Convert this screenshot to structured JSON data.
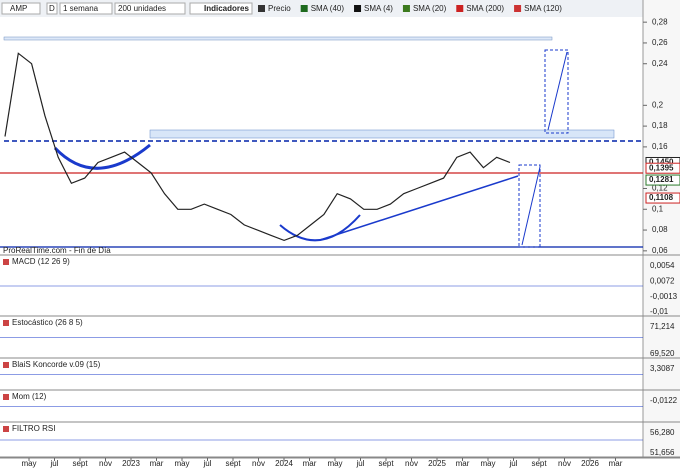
{
  "toolbar": {
    "symbol": "AMP",
    "mode": "D",
    "period": "1 semana",
    "units": "200 unidades",
    "indicators": "Indicadores"
  },
  "legend": [
    "Precio",
    "SMA (40)",
    "SMA (4)",
    "SMA (20)",
    "SMA (200)",
    "SMA (120)"
  ],
  "legend_colors": [
    "#333333",
    "#1e6a1e",
    "#111111",
    "#3c7a1e",
    "#cc2222",
    "#cc3333"
  ],
  "source": "ProRealTime.com - Fin de Día",
  "price_panel": {
    "ylim": [
      0.056,
      0.284
    ],
    "yticks": [
      {
        "value": 0.28,
        "label": "0,28"
      },
      {
        "value": 0.26,
        "label": "0,26"
      },
      {
        "value": 0.24,
        "label": "0,24"
      },
      {
        "value": 0.2,
        "label": "0,2"
      },
      {
        "value": 0.18,
        "label": "0,18"
      },
      {
        "value": 0.16,
        "label": "0,16"
      },
      {
        "value": 0.12,
        "label": "0,12"
      },
      {
        "value": 0.1,
        "label": "0,1"
      },
      {
        "value": 0.08,
        "label": "0,08"
      },
      {
        "value": 0.06,
        "label": "0,06"
      }
    ],
    "price_labels": [
      {
        "value": 0.145,
        "label": "0,1450",
        "color": "#222222"
      },
      {
        "value": 0.1395,
        "label": "0,1395",
        "color": "#cc2222"
      },
      {
        "value": 0.1281,
        "label": "0,1281",
        "color": "#2b7a2b"
      },
      {
        "value": 0.1108,
        "label": "0,1108",
        "color": "#cc2222"
      }
    ],
    "price_series": [
      0.17,
      0.25,
      0.24,
      0.19,
      0.15,
      0.125,
      0.13,
      0.145,
      0.15,
      0.155,
      0.145,
      0.135,
      0.115,
      0.1,
      0.1,
      0.105,
      0.1,
      0.095,
      0.085,
      0.08,
      0.075,
      0.07,
      0.075,
      0.085,
      0.095,
      0.115,
      0.11,
      0.1,
      0.1,
      0.105,
      0.115,
      0.12,
      0.125,
      0.13,
      0.15,
      0.155,
      0.14,
      0.15,
      0.145
    ]
  },
  "panels": [
    {
      "title": "MACD (12 26 9)",
      "labels": [
        "0,0054",
        "0,0072",
        "-0,0013",
        "-0,01"
      ]
    },
    {
      "title": "Estocástico (26 8 5)",
      "labels": [
        "71,214",
        "69,520"
      ]
    },
    {
      "title": "BlaiS Koncorde v.09 (15)",
      "labels": [
        "3,3087"
      ]
    },
    {
      "title": "Mom (12)",
      "labels": [
        "-0,0122"
      ]
    },
    {
      "title": "FILTRO RSI",
      "labels": [
        "56,280",
        "51,656"
      ]
    }
  ],
  "time_axis": [
    "may",
    "jul",
    "sept",
    "nov",
    "2023",
    "mar",
    "may",
    "jul",
    "sept",
    "nov",
    "2024",
    "mar",
    "may",
    "jul",
    "sept",
    "nov",
    "2025",
    "mar",
    "may",
    "jul",
    "sept",
    "nov",
    "2026",
    "mar"
  ]
}
